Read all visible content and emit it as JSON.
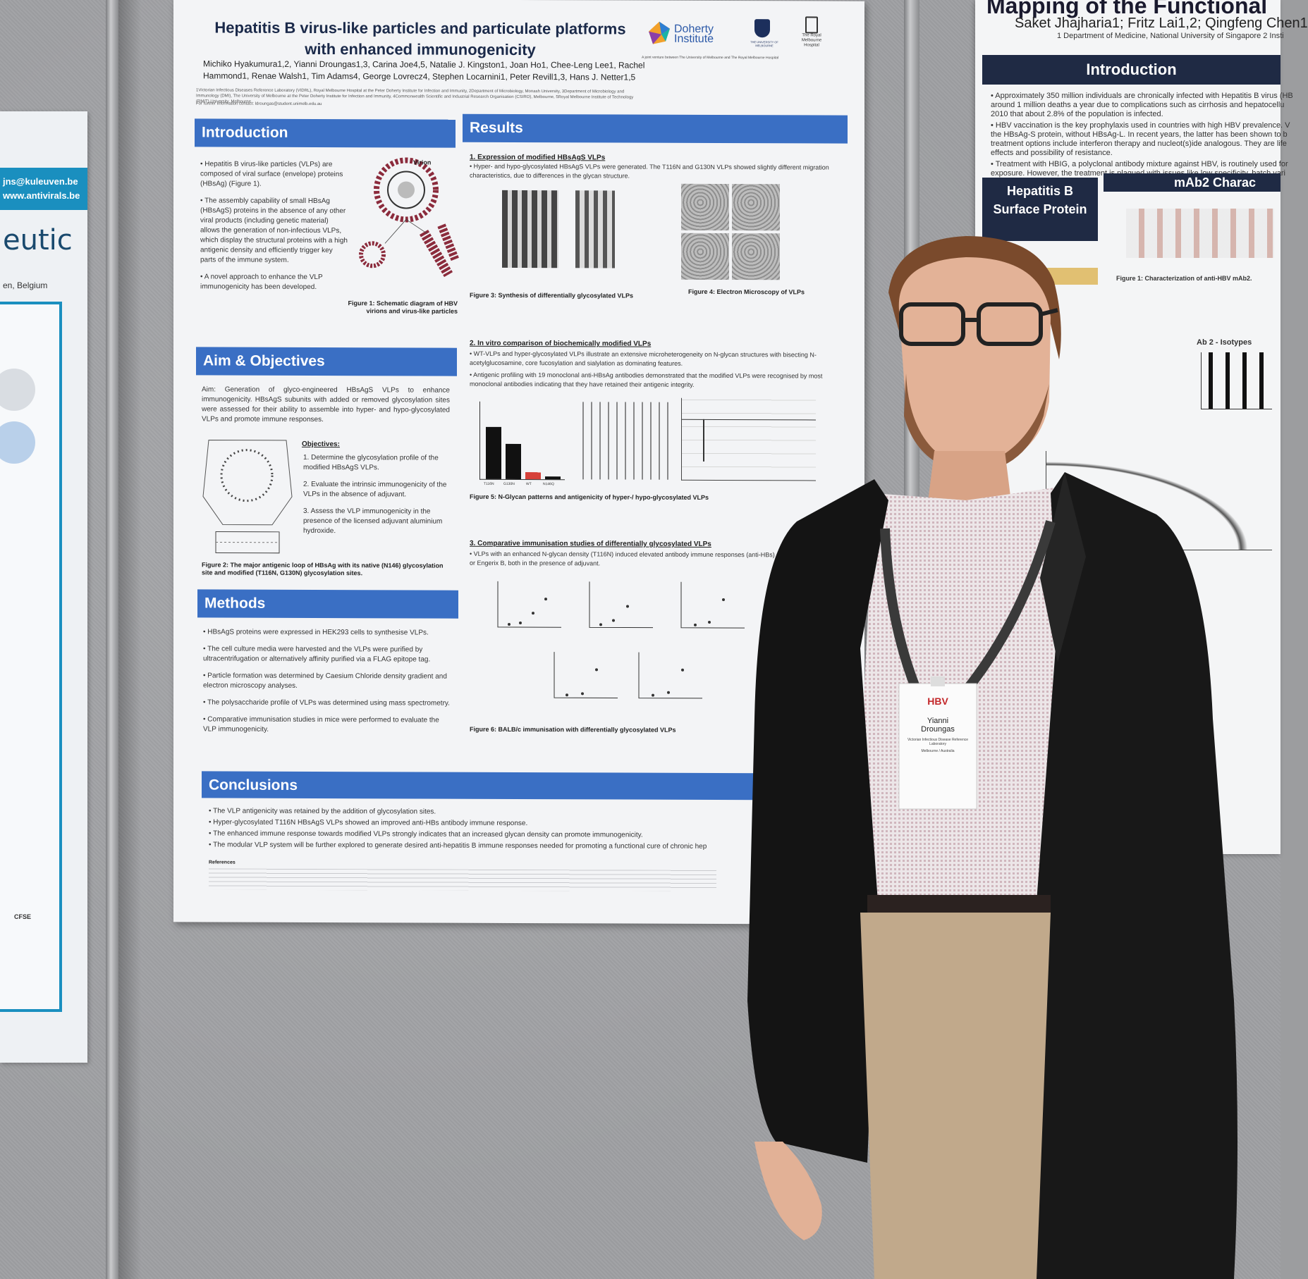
{
  "main_poster": {
    "title": "Hepatitis B virus-like particles and particulate platforms with enhanced immunogenicity",
    "authors": "Michiko Hyakumura1,2, Yianni Droungas1,3, Carina Joe4,5, Natalie J. Kingston1, Joan Ho1, Chee-Leng Lee1, Rachel Hammond1, Renae Walsh1, Tim Adams4, George Lovrecz4, Stephen Locarnini1, Peter Revill1,3, Hans J. Netter1,5",
    "affiliations": "1Victorian Infectious Diseases Reference Laboratory (VIDRL), Royal Melbourne Hospital at the Peter Doherty Institute for Infection and Immunity, 2Department of Microbiology, Monash University, 3Department of Microbiology and Immunology (DMI), The University of Melbourne at the Peter Doherty Institute for Infection and Immunity, 4Commonwealth Scientific and Industrial Research Organisation (CSIRO), Melbourne, 5Royal Melbourne Institute of Technology (RMIT) University, Melbourne",
    "contact": "For further information contact: ldroungas@student.unimelb.edu.au",
    "logo_doherty": "Doherty Institute",
    "logo_doherty_sub": "A joint venture between The University of Melbourne and The Royal Melbourne Hospital",
    "logo_melbourne": "THE UNIVERSITY OF MELBOURNE",
    "logo_rmh": "The Royal Melbourne Hospital",
    "introduction": {
      "heading": "Introduction",
      "p1": "• Hepatitis B virus-like particles (VLPs) are composed of viral surface (envelope) proteins (HBsAg) (Figure 1).",
      "p2": "• The assembly capability of small HBsAg (HBsAgS) proteins in the absence of any other viral products (including genetic material) allows the generation of non-infectious VLPs, which display the structural proteins with a high antigenic density and efficiently trigger key parts of the immune system.",
      "p3": "• A novel approach to enhance the VLP immunogenicity has been developed.",
      "fig1_label_virion": "Virion",
      "fig1_caption": "Figure 1: Schematic diagram of HBV virions and virus-like particles"
    },
    "aim": {
      "heading": "Aim & Objectives",
      "text": "Aim: Generation of glyco-engineered HBsAgS VLPs to enhance immunogenicity. HBsAgS subunits with added or removed glycosylation sites were assessed for their ability to assemble into hyper- and hypo-glycosylated VLPs and promote immune responses.",
      "objectives_title": "Objectives:",
      "objectives": [
        "1. Determine the glycosylation profile of the modified HBsAgS VLPs.",
        "2. Evaluate the intrinsic immunogenicity of the VLPs in the absence of adjuvant.",
        "3. Assess the VLP immunogenicity in the presence of the licensed adjuvant aluminium hydroxide."
      ],
      "fig2_caption": "Figure 2: The major antigenic loop of HBsAg with its native (N146) glycosylation site and modified (T116N, G130N) glycosylation sites."
    },
    "methods": {
      "heading": "Methods",
      "items": [
        "• HBsAgS proteins were expressed in HEK293 cells to synthesise VLPs.",
        "• The cell culture media were harvested and the VLPs were purified by ultracentrifugation or alternatively affinity purified via a FLAG epitope tag.",
        "• Particle formation was determined by Caesium Chloride density gradient and electron microscopy analyses.",
        "• The polysaccharide profile of VLPs was determined using mass spectrometry.",
        "• Comparative immunisation studies in mice were performed to evaluate the VLP immunogenicity."
      ]
    },
    "results": {
      "heading": "Results",
      "s1_title": "1. Expression of modified HBsAgS VLPs",
      "s1_text": "• Hyper- and hypo-glycosylated HBsAgS VLPs were generated. The T116N and G130N VLPs showed slightly different migration characteristics, due to differences in the glycan structure.",
      "fig3_caption": "Figure 3: Synthesis of differentially glycosylated VLPs",
      "fig4_caption": "Figure 4: Electron Microscopy of VLPs",
      "s2_title": "2. In vitro comparison of biochemically modified VLPs",
      "s2_text1": "• WT-VLPs and hyper-glycosylated VLPs illustrate an extensive microheterogeneity on N-glycan structures with bisecting N-acetylglucosamine, core fucosylation and sialylation as dominating features.",
      "s2_text2": "• Antigenic profiling with 19 monoclonal anti-HBsAg antibodies demonstrated that the modified VLPs were recognised by most monoclonal antibodies indicating that they have retained their antigenic integrity.",
      "fig5_caption": "Figure 5: N-Glycan patterns and antigenicity of hyper-/ hypo-glycosylated VLPs",
      "s3_title": "3. Comparative immunisation studies of differentially glycosylated VLPs",
      "s3_text": "• VLPs with an enhanced N-glycan density (T116N) induced elevated antibody immune responses (anti-HBs) compared to WT VLPs or Engerix B, both in the presence of adjuvant.",
      "fig6_caption": "Figure 6: BALB/c immunisation with differentially glycosylated VLPs",
      "fig5_bar_labels": [
        "T116N",
        "G130N",
        "WT",
        "N146Q"
      ]
    },
    "conclusions": {
      "heading": "Conclusions",
      "items": [
        "• The VLP antigenicity was retained by the addition of glycosylation sites.",
        "• Hyper-glycosylated T116N HBsAgS VLPs showed an improved anti-HBs antibody immune response.",
        "• The enhanced immune response towards modified VLPs strongly indicates that an increased glycan density can promote immunogenicity.",
        "• The modular VLP system will be further explored to generate desired anti-hepatitis B immune responses needed for promoting a functional cure of chronic hep"
      ],
      "references_title": "References"
    }
  },
  "right_poster": {
    "title": "Mapping of the Functional",
    "authors": "Saket Jhajharia1; Fritz Lai1,2; Qingfeng Chen1",
    "dept": "1 Department of Medicine, National University of Singapore 2 Insti",
    "intro_heading": "Introduction",
    "intro_lines": [
      "• Approximately 350 million individuals are chronically infected with Hepatitis B virus (HB",
      "around 1 million deaths a year due to complications such as cirrhosis and hepatocellu",
      "2010 that about 2.8% of the population is infected.",
      "• HBV vaccination is the key prophylaxis used in countries with high HBV prevalence. V",
      "the HBsAg-S protein, without HBsAg-L. In recent years, the latter has been shown to b",
      "treatment options include interferon therapy and nucleot(s)ide analogous. They are life",
      "effects and possibility of resistance.",
      "• Treatment with HBIG, a polyclonal antibody mixture against HBV, is routinely used for",
      "exposure. However, the treatment is plagued with issues like low specificity, batch vari"
    ],
    "surface_heading": "Hepatitis B Surface Protein",
    "mab_heading": "mAb2 Charac",
    "fig1_text": "Figure 1: Characterization of anti-HBV mAb2.",
    "isotype_label": "Ab 2 - Isotypes"
  },
  "left_poster": {
    "email": "jns@kuleuven.be",
    "web": "www.antivirals.be",
    "big_text": "eutic",
    "location": "en, Belgium",
    "label_cfse": "CFSE"
  },
  "badge": {
    "event": "HBV",
    "first_name": "Yianni",
    "last_name": "Droungas",
    "org": "Victorian Infectious Disease Reference Laboratory",
    "city": "Melbourne / Australia"
  }
}
